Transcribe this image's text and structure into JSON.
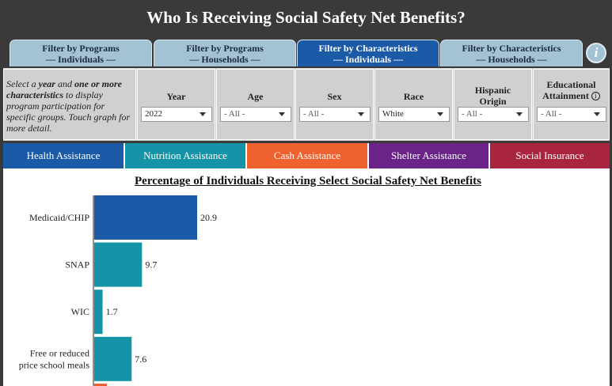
{
  "page_title": "Who Is Receiving Social Safety Net Benefits?",
  "tabs": [
    {
      "line1": "Filter by Programs",
      "line2": "— Individuals —",
      "active": false
    },
    {
      "line1": "Filter by Programs",
      "line2": "— Households —",
      "active": false
    },
    {
      "line1": "Filter by Characteristics",
      "line2": "— Individuals —",
      "active": true
    },
    {
      "line1": "Filter by Characteristics",
      "line2": "— Households —",
      "active": false
    }
  ],
  "info_button": "i",
  "help_text": {
    "t1": "Select a ",
    "b1": "year",
    "t2": " and ",
    "b2": "one or more characteristics",
    "t3": " to display program participation for specific groups. Touch graph for more detail."
  },
  "filters": {
    "year": {
      "label": "Year",
      "value": "2022"
    },
    "age": {
      "label": "Age",
      "value": "- All -"
    },
    "sex": {
      "label": "Sex",
      "value": "- All -"
    },
    "race": {
      "label": "Race",
      "value": "White"
    },
    "hispanic": {
      "label_line1": "Hispanic",
      "label_line2": "Origin",
      "value": "- All -"
    },
    "education": {
      "label_line1": "Educational",
      "label_line2": "Attainment",
      "info": "i",
      "value": "- All -"
    }
  },
  "programs": [
    {
      "label": "Health Assistance",
      "color": "#1b5aa6"
    },
    {
      "label": "Nutrition Assistance",
      "color": "#1494a6"
    },
    {
      "label": "Cash Assistance",
      "color": "#ef6230"
    },
    {
      "label": "Shelter Assistance",
      "color": "#6a2387"
    },
    {
      "label": "Social Insurance",
      "color": "#a8243f"
    }
  ],
  "chart_data": {
    "type": "bar",
    "orientation": "horizontal",
    "title": "Percentage of Individuals Receiving Select Social Safety Net Benefits",
    "categories": [
      "Medicaid/CHIP",
      "SNAP",
      "WIC",
      "Free or reduced price school meals"
    ],
    "category_lines": [
      [
        "Medicaid/CHIP"
      ],
      [
        "SNAP"
      ],
      [
        "WIC"
      ],
      [
        "Free or reduced",
        "price school meals"
      ]
    ],
    "values": [
      20.9,
      9.7,
      1.7,
      7.6
    ],
    "colors": [
      "#1b5aa6",
      "#1494a6",
      "#1494a6",
      "#1494a6"
    ]
  }
}
